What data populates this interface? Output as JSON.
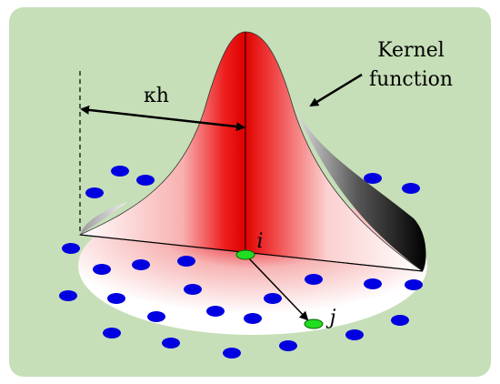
{
  "labels": {
    "width_label": "κh",
    "kernel_label": [
      "Kernel",
      "function"
    ],
    "center_node": "i",
    "neighbor_node": "j"
  }
}
